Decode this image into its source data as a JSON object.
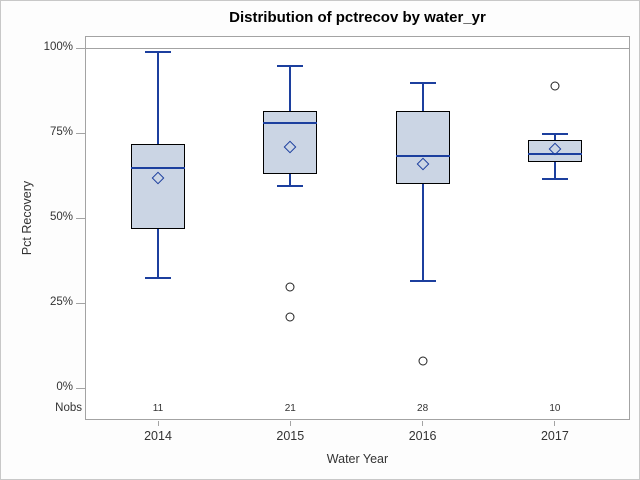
{
  "chart_data": {
    "type": "boxplot",
    "title": "Distribution of pctrecov by water_yr",
    "xlabel": "Water Year",
    "ylabel": "Pct Recovery",
    "ylim": [
      0,
      100
    ],
    "yticks": [
      0,
      25,
      50,
      75,
      100
    ],
    "ytick_labels": [
      "0%",
      "25%",
      "50%",
      "75%",
      "100%"
    ],
    "refline_y": 100,
    "grid": false,
    "legend": "none",
    "nobs_label": "Nobs",
    "categories": [
      "2014",
      "2015",
      "2016",
      "2017"
    ],
    "nobs": [
      11,
      21,
      28,
      10
    ],
    "series": [
      {
        "category": "2014",
        "n": 11,
        "whisker_low": 32.5,
        "q1": 47,
        "median": 65,
        "q3": 72,
        "whisker_high": 99,
        "mean": 62,
        "outliers": []
      },
      {
        "category": "2015",
        "n": 21,
        "whisker_low": 59.5,
        "q1": 63,
        "median": 78,
        "q3": 81.5,
        "whisker_high": 95,
        "mean": 71,
        "outliers": [
          30,
          21
        ]
      },
      {
        "category": "2016",
        "n": 28,
        "whisker_low": 31.5,
        "q1": 60,
        "median": 68.5,
        "q3": 81.5,
        "whisker_high": 90,
        "mean": 66,
        "outliers": [
          8
        ]
      },
      {
        "category": "2017",
        "n": 10,
        "whisker_low": 61.5,
        "q1": 66.5,
        "median": 69,
        "q3": 73,
        "whisker_high": 75,
        "mean": 70.5,
        "outliers": [
          89
        ]
      }
    ],
    "colors": {
      "box_fill": "#cbd5e4",
      "box_outline": "#000000",
      "whisker": "#1c3f9e",
      "median": "#1c3f9e",
      "mean_marker": "#1c3f9e",
      "outlier": "#222222",
      "frame": "#a3a3a3",
      "refline": "#a3a3a3",
      "text": "#333333",
      "title_text": "#000000"
    }
  }
}
